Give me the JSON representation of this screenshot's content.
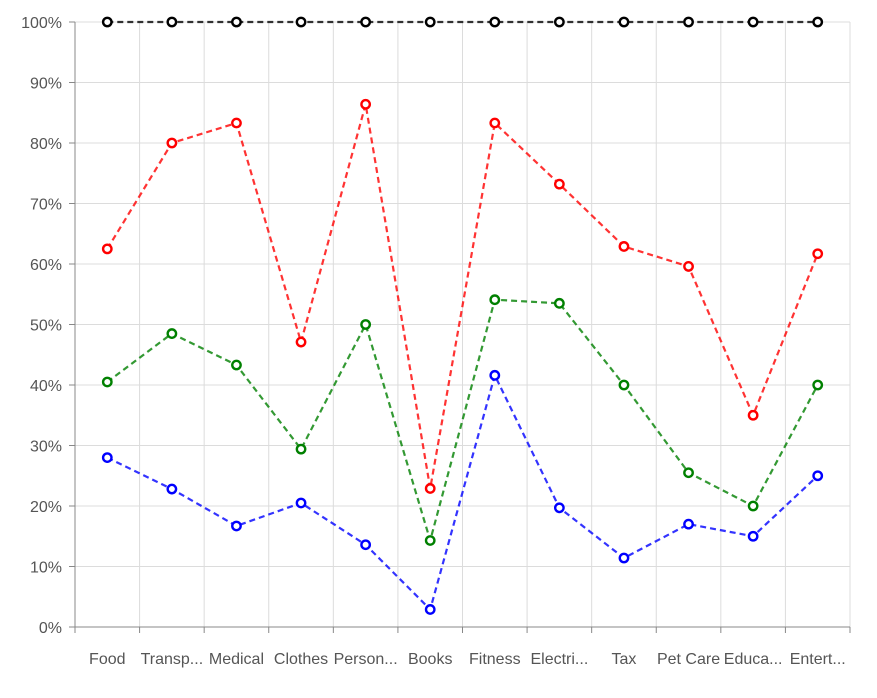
{
  "chart_data": {
    "type": "line",
    "title": "",
    "xlabel": "",
    "ylabel": "",
    "categories": [
      "Food",
      "Transp...",
      "Medical",
      "Clothes",
      "Person...",
      "Books",
      "Fitness",
      "Electri...",
      "Tax",
      "Pet Care",
      "Educa...",
      "Entert..."
    ],
    "y_ticks": [
      "0%",
      "10%",
      "20%",
      "30%",
      "40%",
      "50%",
      "60%",
      "70%",
      "80%",
      "90%",
      "100%"
    ],
    "ylim": [
      0,
      100
    ],
    "grid": true,
    "legend": "none",
    "series": [
      {
        "color": "#0000ff",
        "values": [
          28,
          22.8,
          16.7,
          20.5,
          13.6,
          2.9,
          41.6,
          19.7,
          11.4,
          17,
          15,
          25
        ]
      },
      {
        "color": "#008000",
        "values": [
          40.5,
          48.5,
          43.3,
          29.4,
          50,
          14.3,
          54.1,
          53.5,
          40,
          25.5,
          20,
          40
        ]
      },
      {
        "color": "#ff0000",
        "values": [
          62.5,
          80,
          83.3,
          47.1,
          86.4,
          22.9,
          83.3,
          73.2,
          62.9,
          59.6,
          35,
          61.7
        ]
      },
      {
        "color": "#000000",
        "values": [
          100,
          100,
          100,
          100,
          100,
          100,
          100,
          100,
          100,
          100,
          100,
          100
        ]
      }
    ]
  }
}
